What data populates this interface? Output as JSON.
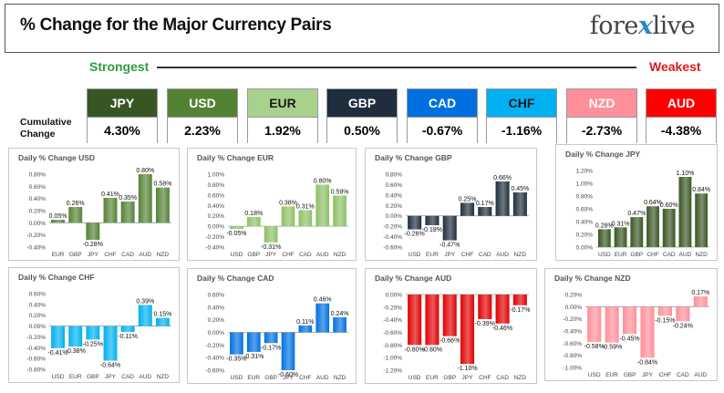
{
  "header": {
    "title": "% Change for the Major Currency Pairs",
    "logo_left": "fore",
    "logo_mid": "x",
    "logo_right": "live"
  },
  "strength": {
    "strongest_label": "Strongest",
    "weakest_label": "Weakest",
    "cumulative_label_1": "Cumulative",
    "cumulative_label_2": "Change",
    "currencies": [
      {
        "name": "JPY",
        "value": "4.30%",
        "header_color": "#375623",
        "text_color": "#ffffff"
      },
      {
        "name": "USD",
        "value": "2.23%",
        "header_color": "#548235",
        "text_color": "#ffffff"
      },
      {
        "name": "EUR",
        "value": "1.92%",
        "header_color": "#a9d18e",
        "text_color": "#1a1a1a"
      },
      {
        "name": "GBP",
        "value": "0.50%",
        "header_color": "#1f2d3d",
        "text_color": "#ffffff"
      },
      {
        "name": "CAD",
        "value": "-0.67%",
        "header_color": "#0070e0",
        "text_color": "#ffffff"
      },
      {
        "name": "CHF",
        "value": "-1.16%",
        "header_color": "#00b0f0",
        "text_color": "#1a1a1a"
      },
      {
        "name": "NZD",
        "value": "-2.73%",
        "header_color": "#ff8f9a",
        "text_color": "#ffffff"
      },
      {
        "name": "AUD",
        "value": "-4.38%",
        "header_color": "#ff0000",
        "text_color": "#ffffff"
      }
    ]
  },
  "chart_data": [
    {
      "type": "bar",
      "title": "Daily % Change USD",
      "categories": [
        "EUR",
        "GBP",
        "JPY",
        "CHF",
        "CAD",
        "AUD",
        "NZD"
      ],
      "values": [
        0.05,
        0.26,
        -0.28,
        0.41,
        0.35,
        0.8,
        0.58
      ],
      "labels": [
        "0.05%",
        "0.26%",
        "-0.28%",
        "0.41%",
        "0.35%",
        "0.80%",
        "0.58%"
      ],
      "ylim": [
        -0.4,
        0.8
      ],
      "ticks": [
        -0.4,
        -0.2,
        0,
        0.2,
        0.4,
        0.6,
        0.8
      ],
      "tick_labels": [
        "-0.40%",
        "-0.20%",
        "0.00%",
        "0.20%",
        "0.40%",
        "0.60%",
        "0.80%"
      ],
      "color": "#548235",
      "grid": false
    },
    {
      "type": "bar",
      "title": "Daily % Change EUR",
      "categories": [
        "USD",
        "GBP",
        "JPY",
        "CHF",
        "CAD",
        "AUD",
        "NZD"
      ],
      "values": [
        -0.05,
        0.18,
        -0.31,
        0.38,
        0.31,
        0.8,
        0.59
      ],
      "labels": [
        "-0.05%",
        "0.18%",
        "-0.31%",
        "0.38%",
        "0.31%",
        "0.80%",
        "0.59%"
      ],
      "ylim": [
        -0.4,
        1.0
      ],
      "ticks": [
        -0.4,
        -0.2,
        0,
        0.2,
        0.4,
        0.6,
        0.8,
        1.0
      ],
      "tick_labels": [
        "-0.40%",
        "-0.20%",
        "0.00%",
        "0.20%",
        "0.40%",
        "0.60%",
        "0.80%",
        "1.00%"
      ],
      "color": "#8cc063",
      "grid": false
    },
    {
      "type": "bar",
      "title": "Daily % Change GBP",
      "categories": [
        "USD",
        "EUR",
        "JPY",
        "CHF",
        "CAD",
        "AUD",
        "NZD"
      ],
      "values": [
        -0.26,
        -0.18,
        -0.47,
        0.25,
        0.17,
        0.66,
        0.45
      ],
      "labels": [
        "-0.26%",
        "-0.18%",
        "-0.47%",
        "0.25%",
        "0.17%",
        "0.66%",
        "0.45%"
      ],
      "ylim": [
        -0.6,
        0.8
      ],
      "ticks": [
        -0.6,
        -0.4,
        -0.2,
        0,
        0.2,
        0.4,
        0.6,
        0.8
      ],
      "tick_labels": [
        "-0.60%",
        "-0.40%",
        "-0.20%",
        "0.00%",
        "0.20%",
        "0.40%",
        "0.60%",
        "0.80%"
      ],
      "color": "#1f2d3d",
      "grid": false
    },
    {
      "type": "bar",
      "title": "Daily % Change JPY",
      "categories": [
        "USD",
        "EUR",
        "GBP",
        "CHF",
        "CAD",
        "AUD",
        "NZD"
      ],
      "values": [
        0.28,
        0.31,
        0.47,
        0.64,
        0.6,
        1.1,
        0.84
      ],
      "labels": [
        "0.28%",
        "0.31%",
        "0.47%",
        "0.64%",
        "0.60%",
        "1.10%",
        "0.84%"
      ],
      "ylim": [
        0,
        1.2
      ],
      "ticks": [
        0,
        0.2,
        0.4,
        0.6,
        0.8,
        1.0,
        1.2
      ],
      "tick_labels": [
        "0.00%",
        "0.20%",
        "0.40%",
        "0.60%",
        "0.80%",
        "1.00%",
        "1.20%"
      ],
      "color": "#375623",
      "grid": false
    },
    {
      "type": "bar",
      "title": "Daily % Change CHF",
      "categories": [
        "USD",
        "EUR",
        "GBP",
        "JPY",
        "CAD",
        "AUD",
        "NZD"
      ],
      "values": [
        -0.41,
        -0.38,
        -0.25,
        -0.64,
        -0.11,
        0.39,
        0.15
      ],
      "labels": [
        "-0.41%",
        "-0.38%",
        "-0.25%",
        "-0.64%",
        "-0.11%",
        "0.39%",
        "0.15%"
      ],
      "ylim": [
        -0.8,
        0.6
      ],
      "ticks": [
        -0.8,
        -0.6,
        -0.4,
        -0.2,
        0,
        0.2,
        0.4,
        0.6
      ],
      "tick_labels": [
        "-0.80%",
        "-0.60%",
        "-0.40%",
        "-0.20%",
        "0.00%",
        "0.20%",
        "0.40%",
        "0.60%"
      ],
      "color": "#00b0f0",
      "grid": false
    },
    {
      "type": "bar",
      "title": "Daily % Change CAD",
      "categories": [
        "USD",
        "EUR",
        "GBP",
        "JPY",
        "CHF",
        "AUD",
        "NZD"
      ],
      "values": [
        -0.35,
        -0.31,
        -0.17,
        -0.6,
        0.11,
        0.46,
        0.24
      ],
      "labels": [
        "-0.35%",
        "-0.31%",
        "-0.17%",
        "-0.60%",
        "0.11%",
        "0.46%",
        "0.24%"
      ],
      "ylim": [
        -0.6,
        0.6
      ],
      "ticks": [
        -0.6,
        -0.4,
        -0.2,
        0,
        0.2,
        0.4,
        0.6
      ],
      "tick_labels": [
        "-0.60%",
        "-0.40%",
        "-0.20%",
        "0.00%",
        "0.20%",
        "0.40%",
        "0.60%"
      ],
      "color": "#0070e0",
      "grid": false
    },
    {
      "type": "bar",
      "title": "Daily % Change AUD",
      "categories": [
        "USD",
        "EUR",
        "GBP",
        "JPY",
        "CHF",
        "CAD",
        "NZD"
      ],
      "values": [
        -0.8,
        -0.8,
        -0.66,
        -1.1,
        -0.39,
        -0.46,
        -0.17
      ],
      "labels": [
        "-0.80%",
        "-0.80%",
        "-0.66%",
        "-1.10%",
        "-0.39%",
        "-0.46%",
        "-0.17%"
      ],
      "ylim": [
        -1.2,
        0
      ],
      "ticks": [
        -1.2,
        -1.0,
        -0.8,
        -0.6,
        -0.4,
        -0.2,
        0
      ],
      "tick_labels": [
        "-1.20%",
        "-1.00%",
        "-0.80%",
        "-0.60%",
        "-0.40%",
        "-0.20%",
        "0.00%"
      ],
      "color": "#e00000",
      "grid": false
    },
    {
      "type": "bar",
      "title": "Daily % Change NZD",
      "categories": [
        "USD",
        "EUR",
        "GBP",
        "JPY",
        "CHF",
        "CAD",
        "AUD"
      ],
      "values": [
        -0.58,
        -0.59,
        -0.45,
        -0.84,
        -0.15,
        -0.24,
        0.17
      ],
      "labels": [
        "-0.58%",
        "-0.59%",
        "-0.45%",
        "-0.84%",
        "-0.15%",
        "-0.24%",
        "0.17%"
      ],
      "ylim": [
        -1.0,
        0.2
      ],
      "ticks": [
        -1.0,
        -0.8,
        -0.6,
        -0.4,
        -0.2,
        0,
        0.2
      ],
      "tick_labels": [
        "-1.00%",
        "-0.80%",
        "-0.60%",
        "-0.40%",
        "-0.20%",
        "0.00%",
        "0.20%"
      ],
      "color": "#ff8f9a",
      "grid": false
    }
  ]
}
